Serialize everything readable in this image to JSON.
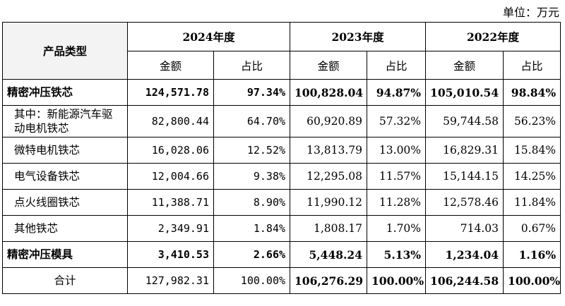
{
  "unit_label": "单位：万元",
  "header": {
    "product_type": "产品类型",
    "years": [
      "2024年度",
      "2023年度",
      "2022年度"
    ],
    "amount": "金额",
    "ratio": "占比"
  },
  "rows": [
    {
      "label": "精密冲压铁芯",
      "cells": [
        "124,571.78",
        "97.34%",
        "100,828.04",
        "94.87%",
        "105,010.54",
        "98.84%"
      ]
    },
    {
      "label": "其中：新能源汽车驱动电机铁芯",
      "cells": [
        "82,800.44",
        "64.70%",
        "60,920.89",
        "57.32%",
        "59,744.58",
        "56.23%"
      ]
    },
    {
      "label": "微特电机铁芯",
      "cells": [
        "16,028.06",
        "12.52%",
        "13,813.79",
        "13.00%",
        "16,829.31",
        "15.84%"
      ]
    },
    {
      "label": "电气设备铁芯",
      "cells": [
        "12,004.66",
        "9.38%",
        "12,295.08",
        "11.57%",
        "15,144.15",
        "14.25%"
      ]
    },
    {
      "label": "点火线圈铁芯",
      "cells": [
        "11,388.71",
        "8.90%",
        "11,990.12",
        "11.28%",
        "12,578.46",
        "11.84%"
      ]
    },
    {
      "label": "其他铁芯",
      "cells": [
        "2,349.91",
        "1.84%",
        "1,808.17",
        "1.70%",
        "714.03",
        "0.67%"
      ]
    },
    {
      "label": "精密冲压模具",
      "cells": [
        "3,410.53",
        "2.66%",
        "5,448.24",
        "5.13%",
        "1,234.04",
        "1.16%"
      ]
    },
    {
      "label": "合计",
      "cells": [
        "127,982.31",
        "100.00%",
        "106,276.29",
        "100.00%",
        "106,244.58",
        "100.00%"
      ]
    }
  ]
}
